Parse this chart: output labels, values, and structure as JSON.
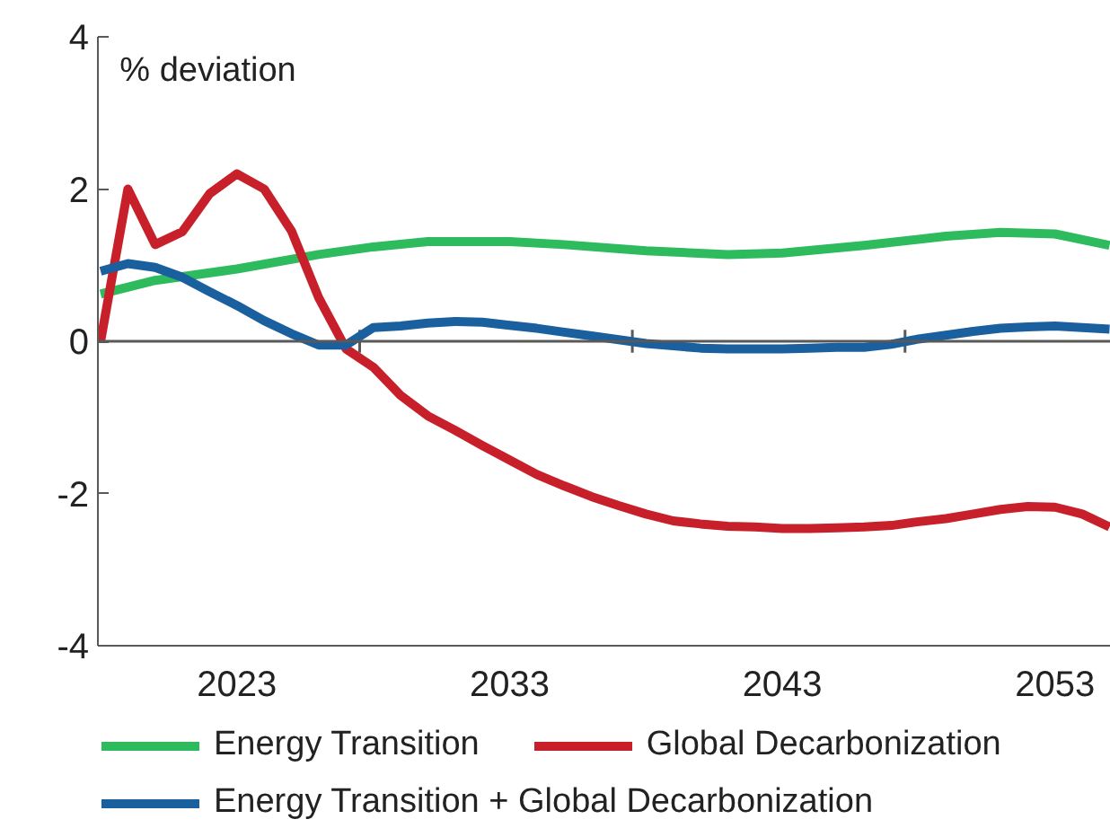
{
  "chart_data": {
    "type": "line",
    "ylabel": "% deviation",
    "x": [
      2018,
      2019,
      2020,
      2021,
      2022,
      2023,
      2024,
      2025,
      2026,
      2027,
      2028,
      2029,
      2030,
      2031,
      2032,
      2033,
      2034,
      2035,
      2036,
      2037,
      2038,
      2039,
      2040,
      2041,
      2042,
      2043,
      2044,
      2045,
      2046,
      2047,
      2048,
      2049,
      2050,
      2051,
      2052,
      2053,
      2054,
      2055
    ],
    "xlim": [
      2017.9,
      2055.05
    ],
    "xticks": [
      {
        "value": 2023,
        "label": "2023"
      },
      {
        "value": 2027.5,
        "label": null
      },
      {
        "value": 2033,
        "label": "2033"
      },
      {
        "value": 2037.5,
        "label": null
      },
      {
        "value": 2043,
        "label": "2043"
      },
      {
        "value": 2047.5,
        "label": null
      },
      {
        "value": 2053,
        "label": "2053"
      }
    ],
    "ylim": [
      -4,
      4
    ],
    "yticks": [
      -4,
      -2,
      0,
      2,
      4
    ],
    "ref_lines": [
      {
        "axis": "y",
        "value": 0,
        "label": null,
        "color": "#595959"
      }
    ],
    "series": [
      {
        "name": "Energy Transition",
        "color": "#2dbb5e",
        "x": [
          2018,
          2020,
          2023,
          2026,
          2028,
          2030,
          2033,
          2035,
          2038,
          2041,
          2043,
          2046,
          2049,
          2051,
          2053,
          2055
        ],
        "values": [
          0.62,
          0.8,
          0.95,
          1.14,
          1.24,
          1.31,
          1.31,
          1.27,
          1.19,
          1.14,
          1.16,
          1.26,
          1.38,
          1.43,
          1.41,
          1.26
        ]
      },
      {
        "name": "Global Decarbonization",
        "color": "#c8202a",
        "values": [
          0,
          2.0,
          1.27,
          1.44,
          1.94,
          2.2,
          2.0,
          1.45,
          0.57,
          -0.1,
          -0.34,
          -0.71,
          -0.98,
          -1.17,
          -1.37,
          -1.56,
          -1.75,
          -1.9,
          -2.04,
          -2.16,
          -2.27,
          -2.36,
          -2.4,
          -2.43,
          -2.44,
          -2.46,
          -2.46,
          -2.45,
          -2.44,
          -2.42,
          -2.37,
          -2.33,
          -2.27,
          -2.21,
          -2.17,
          -2.18,
          -2.27,
          -2.44
        ]
      },
      {
        "name": "Energy Transition + Global Decarbonization",
        "color": "#1a5f9e",
        "values": [
          0.92,
          1.02,
          0.97,
          0.84,
          0.65,
          0.47,
          0.27,
          0.1,
          -0.05,
          -0.05,
          0.18,
          0.2,
          0.24,
          0.26,
          0.25,
          0.21,
          0.17,
          0.12,
          0.07,
          0.02,
          -0.03,
          -0.06,
          -0.09,
          -0.1,
          -0.1,
          -0.1,
          -0.09,
          -0.08,
          -0.08,
          -0.04,
          0.03,
          0.08,
          0.13,
          0.17,
          0.19,
          0.2,
          0.18,
          0.16
        ]
      }
    ],
    "grid": false,
    "legend": "bottom",
    "marker": "none",
    "line_style": "solid"
  }
}
